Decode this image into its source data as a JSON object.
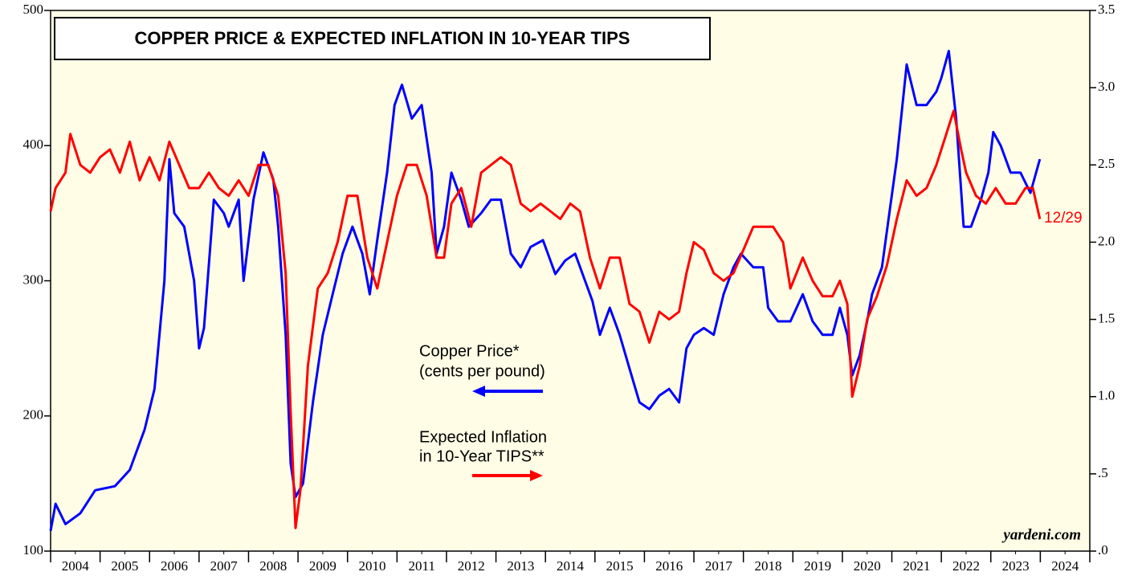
{
  "chart_data": {
    "type": "line",
    "title": "COPPER PRICE & EXPECTED INFLATION IN 10-YEAR TIPS",
    "xlim": [
      2004,
      2025
    ],
    "xticks": [
      {
        "value": 2004.5,
        "label": "2004"
      },
      {
        "value": 2005.5,
        "label": "2005"
      },
      {
        "value": 2006.5,
        "label": "2006"
      },
      {
        "value": 2007.5,
        "label": "2007"
      },
      {
        "value": 2008.5,
        "label": "2008"
      },
      {
        "value": 2009.5,
        "label": "2009"
      },
      {
        "value": 2010.5,
        "label": "2010"
      },
      {
        "value": 2011.5,
        "label": "2011"
      },
      {
        "value": 2012.5,
        "label": "2012"
      },
      {
        "value": 2013.5,
        "label": "2013"
      },
      {
        "value": 2014.5,
        "label": "2014"
      },
      {
        "value": 2015.5,
        "label": "2015"
      },
      {
        "value": 2016.5,
        "label": "2016"
      },
      {
        "value": 2017.5,
        "label": "2017"
      },
      {
        "value": 2018.5,
        "label": "2018"
      },
      {
        "value": 2019.5,
        "label": "2019"
      },
      {
        "value": 2020.5,
        "label": "2020"
      },
      {
        "value": 2021.5,
        "label": "2021"
      },
      {
        "value": 2022.5,
        "label": "2022"
      },
      {
        "value": 2023.5,
        "label": "2023"
      },
      {
        "value": 2024.5,
        "label": "2024"
      }
    ],
    "ylim": [
      100,
      500
    ],
    "yticks": [
      100,
      200,
      300,
      400,
      500
    ],
    "y2lim": [
      0,
      3.5
    ],
    "y2ticks": [
      {
        "value": 0,
        "label": ".0"
      },
      {
        "value": 0.5,
        "label": ".5"
      },
      {
        "value": 1,
        "label": "1.0"
      },
      {
        "value": 1.5,
        "label": "1.5"
      },
      {
        "value": 2,
        "label": "2.0"
      },
      {
        "value": 2.5,
        "label": "2.5"
      },
      {
        "value": 3,
        "label": "3.0"
      },
      {
        "value": 3.5,
        "label": "3.5"
      }
    ],
    "annotations": [
      "Copper Price*",
      "(cents per pound)",
      "Expected Inflation",
      "in 10-Year TIPS**"
    ],
    "end_label": "12/29",
    "source": "yardeni.com",
    "series": [
      {
        "name": "Copper Price",
        "color": "#0000ff",
        "axis": "y",
        "x": [
          2004.0,
          2004.1,
          2004.3,
          2004.6,
          2004.9,
          2005.3,
          2005.6,
          2005.9,
          2006.1,
          2006.3,
          2006.4,
          2006.5,
          2006.7,
          2006.9,
          2007.0,
          2007.1,
          2007.3,
          2007.5,
          2007.6,
          2007.8,
          2007.9,
          2008.1,
          2008.3,
          2008.5,
          2008.6,
          2008.75,
          2008.85,
          2008.95,
          2009.1,
          2009.3,
          2009.5,
          2009.7,
          2009.9,
          2010.1,
          2010.3,
          2010.45,
          2010.6,
          2010.8,
          2010.95,
          2011.1,
          2011.3,
          2011.5,
          2011.7,
          2011.8,
          2011.95,
          2012.1,
          2012.3,
          2012.45,
          2012.7,
          2012.9,
          2013.1,
          2013.3,
          2013.5,
          2013.7,
          2013.95,
          2014.2,
          2014.4,
          2014.6,
          2014.8,
          2014.95,
          2015.1,
          2015.3,
          2015.5,
          2015.7,
          2015.9,
          2016.1,
          2016.3,
          2016.5,
          2016.7,
          2016.85,
          2017.0,
          2017.2,
          2017.4,
          2017.6,
          2017.8,
          2017.95,
          2018.2,
          2018.4,
          2018.5,
          2018.7,
          2018.95,
          2019.2,
          2019.4,
          2019.6,
          2019.8,
          2019.95,
          2020.1,
          2020.2,
          2020.35,
          2020.5,
          2020.6,
          2020.8,
          2020.95,
          2021.1,
          2021.3,
          2021.5,
          2021.7,
          2021.9,
          2022.0,
          2022.15,
          2022.3,
          2022.45,
          2022.6,
          2022.8,
          2022.95,
          2023.05,
          2023.2,
          2023.4,
          2023.6,
          2023.8,
          2023.99
        ],
        "values": [
          115,
          135,
          120,
          128,
          145,
          148,
          160,
          190,
          220,
          300,
          390,
          350,
          340,
          300,
          250,
          265,
          360,
          350,
          340,
          360,
          300,
          360,
          395,
          375,
          340,
          260,
          165,
          140,
          150,
          210,
          260,
          290,
          320,
          340,
          320,
          290,
          330,
          380,
          430,
          445,
          420,
          430,
          380,
          320,
          340,
          380,
          360,
          340,
          350,
          360,
          360,
          320,
          310,
          325,
          330,
          305,
          315,
          320,
          300,
          285,
          260,
          280,
          260,
          235,
          210,
          205,
          215,
          220,
          210,
          250,
          260,
          265,
          260,
          290,
          310,
          320,
          310,
          310,
          280,
          270,
          270,
          290,
          270,
          260,
          260,
          280,
          260,
          230,
          245,
          270,
          290,
          310,
          350,
          390,
          460,
          430,
          430,
          440,
          450,
          470,
          420,
          340,
          340,
          360,
          380,
          410,
          400,
          380,
          380,
          365,
          390
        ]
      },
      {
        "name": "Expected Inflation in 10-Year TIPS",
        "color": "#ff0000",
        "axis": "y2",
        "x": [
          2004.0,
          2004.1,
          2004.3,
          2004.4,
          2004.6,
          2004.8,
          2005.0,
          2005.2,
          2005.4,
          2005.6,
          2005.8,
          2006.0,
          2006.2,
          2006.4,
          2006.6,
          2006.8,
          2007.0,
          2007.2,
          2007.4,
          2007.6,
          2007.8,
          2008.0,
          2008.2,
          2008.4,
          2008.6,
          2008.75,
          2008.85,
          2008.95,
          2009.05,
          2009.2,
          2009.4,
          2009.6,
          2009.8,
          2010.0,
          2010.2,
          2010.4,
          2010.6,
          2010.8,
          2011.0,
          2011.2,
          2011.4,
          2011.6,
          2011.8,
          2011.95,
          2012.1,
          2012.3,
          2012.5,
          2012.7,
          2012.9,
          2013.1,
          2013.3,
          2013.5,
          2013.7,
          2013.9,
          2014.1,
          2014.3,
          2014.5,
          2014.7,
          2014.9,
          2015.1,
          2015.3,
          2015.5,
          2015.7,
          2015.9,
          2016.1,
          2016.3,
          2016.5,
          2016.7,
          2016.85,
          2017.0,
          2017.2,
          2017.4,
          2017.6,
          2017.8,
          2018.0,
          2018.2,
          2018.4,
          2018.6,
          2018.8,
          2018.95,
          2019.2,
          2019.4,
          2019.6,
          2019.8,
          2019.95,
          2020.1,
          2020.2,
          2020.35,
          2020.5,
          2020.7,
          2020.9,
          2021.1,
          2021.3,
          2021.5,
          2021.7,
          2021.9,
          2022.1,
          2022.25,
          2022.4,
          2022.5,
          2022.7,
          2022.9,
          2023.1,
          2023.3,
          2023.5,
          2023.7,
          2023.85,
          2023.99
        ],
        "values": [
          2.2,
          2.35,
          2.45,
          2.7,
          2.5,
          2.45,
          2.55,
          2.6,
          2.45,
          2.65,
          2.4,
          2.55,
          2.4,
          2.65,
          2.5,
          2.35,
          2.35,
          2.45,
          2.35,
          2.3,
          2.4,
          2.3,
          2.5,
          2.5,
          2.3,
          1.8,
          0.9,
          0.15,
          0.4,
          1.2,
          1.7,
          1.8,
          2.0,
          2.3,
          2.3,
          1.9,
          1.7,
          2.0,
          2.3,
          2.5,
          2.5,
          2.3,
          1.9,
          1.9,
          2.25,
          2.35,
          2.1,
          2.45,
          2.5,
          2.55,
          2.5,
          2.25,
          2.2,
          2.25,
          2.2,
          2.15,
          2.25,
          2.2,
          1.9,
          1.7,
          1.9,
          1.9,
          1.6,
          1.55,
          1.35,
          1.55,
          1.5,
          1.55,
          1.8,
          2.0,
          1.95,
          1.8,
          1.75,
          1.8,
          1.95,
          2.1,
          2.1,
          2.1,
          2.0,
          1.7,
          1.9,
          1.75,
          1.65,
          1.65,
          1.75,
          1.6,
          1.0,
          1.2,
          1.5,
          1.65,
          1.85,
          2.15,
          2.4,
          2.3,
          2.35,
          2.5,
          2.7,
          2.85,
          2.6,
          2.45,
          2.3,
          2.25,
          2.35,
          2.25,
          2.25,
          2.35,
          2.35,
          2.15
        ]
      }
    ]
  }
}
